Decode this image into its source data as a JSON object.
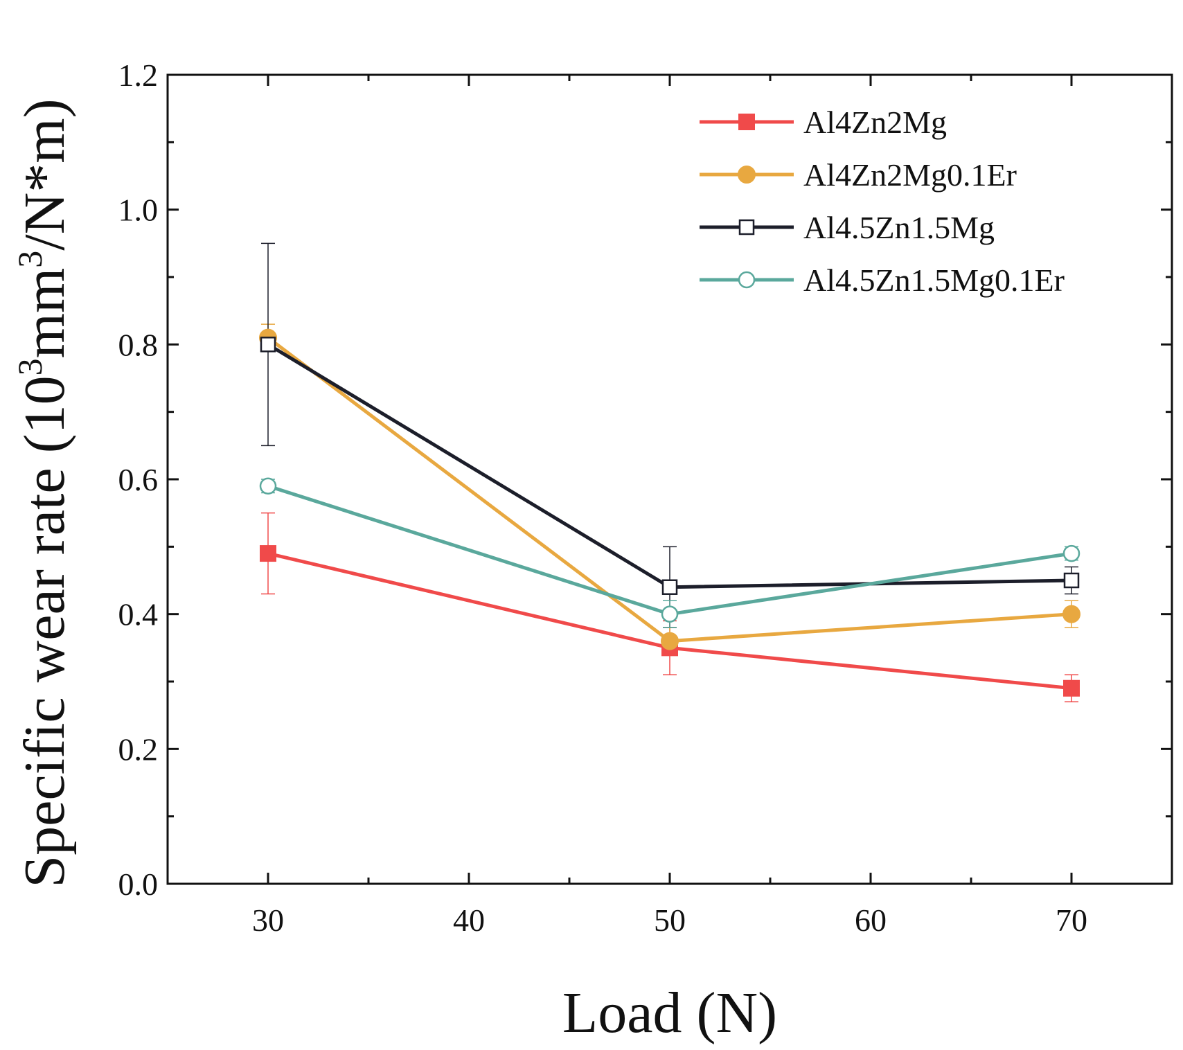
{
  "chart_data": {
    "type": "line",
    "title": "",
    "xlabel": "Load (N)",
    "ylabel": {
      "prefix": "Specific wear rate (10",
      "sup": "3",
      "middle": "mm",
      "sup2": "3",
      "suffix": "/N*m)"
    },
    "xlim": [
      25,
      75
    ],
    "ylim": [
      0.0,
      1.2
    ],
    "xticks": [
      30,
      40,
      50,
      60,
      70
    ],
    "xtick_labels": [
      "30",
      "40",
      "50",
      "60",
      "70"
    ],
    "yticks": [
      0.0,
      0.2,
      0.4,
      0.6,
      0.8,
      1.0,
      1.2
    ],
    "ytick_labels": [
      "0.0",
      "0.2",
      "0.4",
      "0.6",
      "0.8",
      "1.0",
      "1.2"
    ],
    "x": [
      30,
      50,
      70
    ],
    "legend_position": "top-right",
    "series": [
      {
        "name": "Al4Zn2Mg",
        "color": "#f04a4a",
        "marker": "square-filled",
        "values": [
          0.49,
          0.35,
          0.29
        ],
        "errors": [
          0.06,
          0.04,
          0.02
        ]
      },
      {
        "name": "Al4Zn2Mg0.1Er",
        "color": "#e8a840",
        "marker": "circle-filled",
        "values": [
          0.81,
          0.36,
          0.4
        ],
        "errors": [
          0.02,
          0.02,
          0.02
        ]
      },
      {
        "name": "Al4.5Zn1.5Mg",
        "color": "#1c1e2a",
        "marker": "square-open",
        "values": [
          0.8,
          0.44,
          0.45
        ],
        "errors": [
          0.15,
          0.06,
          0.02
        ]
      },
      {
        "name": "Al4.5Zn1.5Mg0.1Er",
        "color": "#5aa89c",
        "marker": "circle-open",
        "values": [
          0.59,
          0.4,
          0.49
        ],
        "errors": [
          0.01,
          0.02,
          0.01
        ]
      }
    ]
  }
}
